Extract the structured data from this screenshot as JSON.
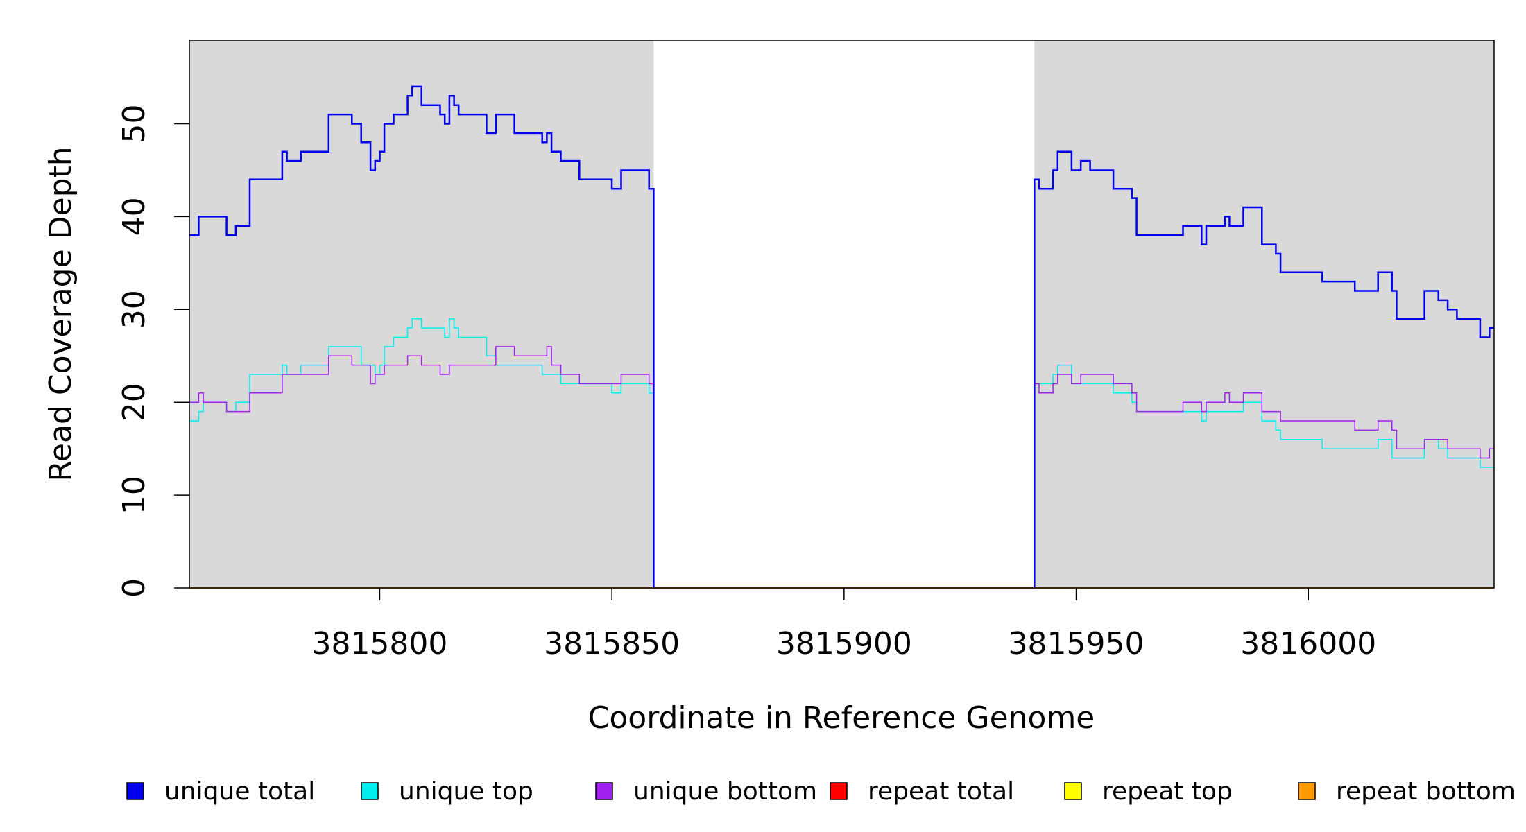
{
  "chart_data": {
    "type": "line",
    "title": "",
    "xlabel": "Coordinate in Reference Genome",
    "ylabel": "Read Coverage Depth",
    "xlim": [
      3815759,
      3816040
    ],
    "ylim": [
      0,
      59
    ],
    "xticks": [
      3815800,
      3815850,
      3815900,
      3815950,
      3816000
    ],
    "xtick_labels": [
      "3815800",
      "3815850",
      "3815900",
      "3815950",
      "3816000"
    ],
    "yticks": [
      0,
      10,
      20,
      30,
      40,
      50
    ],
    "ytick_labels": [
      "0",
      "10",
      "20",
      "30",
      "40",
      "50"
    ],
    "grid": false,
    "legend_position": "bottom",
    "shaded_regions": [
      {
        "from": 3815759,
        "to": 3815859,
        "color": "#d9d9d9"
      },
      {
        "from": 3815941,
        "to": 3816040,
        "color": "#d9d9d9"
      }
    ],
    "series": [
      {
        "name": "unique total",
        "color": "#0000ee",
        "width": 2.5,
        "points": [
          [
            3815759,
            38
          ],
          [
            3815761,
            40
          ],
          [
            3815767,
            38
          ],
          [
            3815769,
            39
          ],
          [
            3815772,
            44
          ],
          [
            3815779,
            47
          ],
          [
            3815780,
            46
          ],
          [
            3815783,
            47
          ],
          [
            3815789,
            51
          ],
          [
            3815794,
            50
          ],
          [
            3815796,
            48
          ],
          [
            3815798,
            45
          ],
          [
            3815799,
            46
          ],
          [
            3815800,
            47
          ],
          [
            3815801,
            50
          ],
          [
            3815803,
            51
          ],
          [
            3815806,
            53
          ],
          [
            3815807,
            54
          ],
          [
            3815809,
            52
          ],
          [
            3815813,
            51
          ],
          [
            3815814,
            50
          ],
          [
            3815815,
            53
          ],
          [
            3815816,
            52
          ],
          [
            3815817,
            51
          ],
          [
            3815823,
            49
          ],
          [
            3815825,
            51
          ],
          [
            3815829,
            49
          ],
          [
            3815835,
            48
          ],
          [
            3815836,
            49
          ],
          [
            3815837,
            47
          ],
          [
            3815839,
            46
          ],
          [
            3815843,
            44
          ],
          [
            3815850,
            43
          ],
          [
            3815852,
            45
          ],
          [
            3815858,
            43
          ],
          [
            3815859,
            0
          ],
          [
            3815941,
            44
          ],
          [
            3815942,
            43
          ],
          [
            3815945,
            45
          ],
          [
            3815946,
            47
          ],
          [
            3815949,
            45
          ],
          [
            3815951,
            46
          ],
          [
            3815953,
            45
          ],
          [
            3815958,
            43
          ],
          [
            3815962,
            42
          ],
          [
            3815963,
            38
          ],
          [
            3815973,
            39
          ],
          [
            3815977,
            37
          ],
          [
            3815978,
            39
          ],
          [
            3815982,
            40
          ],
          [
            3815983,
            39
          ],
          [
            3815986,
            41
          ],
          [
            3815990,
            37
          ],
          [
            3815993,
            36
          ],
          [
            3815994,
            34
          ],
          [
            3816003,
            33
          ],
          [
            3816010,
            32
          ],
          [
            3816015,
            34
          ],
          [
            3816018,
            32
          ],
          [
            3816019,
            29
          ],
          [
            3816025,
            32
          ],
          [
            3816028,
            31
          ],
          [
            3816030,
            30
          ],
          [
            3816032,
            29
          ],
          [
            3816037,
            27
          ],
          [
            3816039,
            28
          ],
          [
            3816040,
            28
          ]
        ]
      },
      {
        "name": "unique top",
        "color": "#00eeee",
        "width": 1.5,
        "points": [
          [
            3815759,
            18
          ],
          [
            3815761,
            19
          ],
          [
            3815762,
            20
          ],
          [
            3815767,
            19
          ],
          [
            3815769,
            20
          ],
          [
            3815772,
            23
          ],
          [
            3815779,
            24
          ],
          [
            3815780,
            23
          ],
          [
            3815783,
            24
          ],
          [
            3815789,
            26
          ],
          [
            3815796,
            24
          ],
          [
            3815799,
            23
          ],
          [
            3815800,
            24
          ],
          [
            3815801,
            26
          ],
          [
            3815803,
            27
          ],
          [
            3815806,
            28
          ],
          [
            3815807,
            29
          ],
          [
            3815809,
            28
          ],
          [
            3815814,
            27
          ],
          [
            3815815,
            29
          ],
          [
            3815816,
            28
          ],
          [
            3815817,
            27
          ],
          [
            3815823,
            25
          ],
          [
            3815825,
            24
          ],
          [
            3815835,
            23
          ],
          [
            3815839,
            22
          ],
          [
            3815850,
            21
          ],
          [
            3815852,
            22
          ],
          [
            3815858,
            21
          ],
          [
            3815859,
            0
          ],
          [
            3815941,
            22
          ],
          [
            3815945,
            23
          ],
          [
            3815946,
            24
          ],
          [
            3815949,
            22
          ],
          [
            3815958,
            21
          ],
          [
            3815962,
            20
          ],
          [
            3815963,
            19
          ],
          [
            3815977,
            18
          ],
          [
            3815978,
            19
          ],
          [
            3815986,
            20
          ],
          [
            3815990,
            18
          ],
          [
            3815993,
            17
          ],
          [
            3815994,
            16
          ],
          [
            3816003,
            15
          ],
          [
            3816015,
            16
          ],
          [
            3816018,
            14
          ],
          [
            3816025,
            16
          ],
          [
            3816028,
            15
          ],
          [
            3816030,
            14
          ],
          [
            3816037,
            13
          ],
          [
            3816040,
            13
          ]
        ]
      },
      {
        "name": "unique bottom",
        "color": "#a020f0",
        "width": 1.5,
        "points": [
          [
            3815759,
            20
          ],
          [
            3815761,
            21
          ],
          [
            3815762,
            20
          ],
          [
            3815767,
            19
          ],
          [
            3815772,
            21
          ],
          [
            3815779,
            23
          ],
          [
            3815789,
            25
          ],
          [
            3815794,
            24
          ],
          [
            3815798,
            22
          ],
          [
            3815799,
            23
          ],
          [
            3815801,
            24
          ],
          [
            3815806,
            25
          ],
          [
            3815809,
            24
          ],
          [
            3815813,
            23
          ],
          [
            3815815,
            24
          ],
          [
            3815825,
            26
          ],
          [
            3815829,
            25
          ],
          [
            3815836,
            26
          ],
          [
            3815837,
            24
          ],
          [
            3815839,
            23
          ],
          [
            3815843,
            22
          ],
          [
            3815852,
            23
          ],
          [
            3815858,
            22
          ],
          [
            3815859,
            0
          ],
          [
            3815941,
            22
          ],
          [
            3815942,
            21
          ],
          [
            3815945,
            22
          ],
          [
            3815946,
            23
          ],
          [
            3815949,
            22
          ],
          [
            3815951,
            23
          ],
          [
            3815958,
            22
          ],
          [
            3815962,
            21
          ],
          [
            3815963,
            19
          ],
          [
            3815973,
            20
          ],
          [
            3815977,
            19
          ],
          [
            3815978,
            20
          ],
          [
            3815982,
            21
          ],
          [
            3815983,
            20
          ],
          [
            3815986,
            21
          ],
          [
            3815990,
            19
          ],
          [
            3815994,
            18
          ],
          [
            3816010,
            17
          ],
          [
            3816015,
            18
          ],
          [
            3816018,
            17
          ],
          [
            3816019,
            15
          ],
          [
            3816025,
            16
          ],
          [
            3816030,
            15
          ],
          [
            3816037,
            14
          ],
          [
            3816039,
            15
          ],
          [
            3816040,
            15
          ]
        ]
      },
      {
        "name": "repeat total",
        "color": "#ff0000",
        "width": 1.5,
        "points": [
          [
            3815759,
            0
          ],
          [
            3816040,
            0
          ]
        ]
      },
      {
        "name": "repeat top",
        "color": "#ffff00",
        "width": 1.5,
        "points": [
          [
            3815759,
            0
          ],
          [
            3816040,
            0
          ]
        ]
      },
      {
        "name": "repeat bottom",
        "color": "#ff9900",
        "width": 2,
        "points": [
          [
            3815759,
            0
          ],
          [
            3816040,
            0
          ]
        ]
      }
    ]
  }
}
